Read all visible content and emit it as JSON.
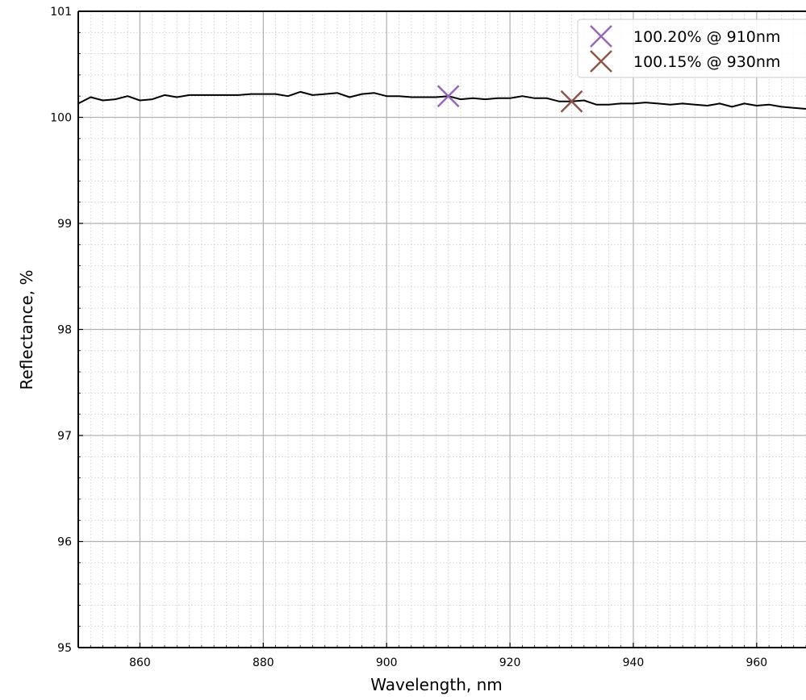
{
  "chart_data": {
    "type": "line",
    "title": "",
    "xlabel": "Wavelength, nm",
    "ylabel": "Reflectance, %",
    "xlim": [
      850,
      968
    ],
    "ylim": [
      95,
      101
    ],
    "xticks": [
      860,
      880,
      900,
      920,
      940,
      960
    ],
    "yticks": [
      95,
      96,
      97,
      98,
      99,
      100,
      101
    ],
    "x_minor_step": 2,
    "y_minor_step": 0.2,
    "grid": true,
    "minor_grid": true,
    "legend_position": "top-right",
    "colors": {
      "series": "#000000",
      "marker_910": "#9467bd",
      "marker_930": "#8c564b"
    },
    "series": [
      {
        "x": [
          850,
          852,
          854,
          856,
          858,
          860,
          862,
          864,
          866,
          868,
          870,
          872,
          874,
          876,
          878,
          880,
          882,
          884,
          886,
          888,
          890,
          892,
          894,
          896,
          898,
          900,
          902,
          904,
          906,
          908,
          910,
          912,
          914,
          916,
          918,
          920,
          922,
          924,
          926,
          928,
          930,
          932,
          934,
          936,
          938,
          940,
          942,
          944,
          946,
          948,
          950,
          952,
          954,
          956,
          958,
          960,
          962,
          964,
          966,
          968
        ],
        "y": [
          100.13,
          100.19,
          100.16,
          100.17,
          100.2,
          100.16,
          100.17,
          100.21,
          100.19,
          100.21,
          100.21,
          100.21,
          100.21,
          100.21,
          100.22,
          100.22,
          100.22,
          100.2,
          100.24,
          100.21,
          100.22,
          100.23,
          100.19,
          100.22,
          100.23,
          100.2,
          100.2,
          100.19,
          100.19,
          100.19,
          100.2,
          100.17,
          100.18,
          100.17,
          100.18,
          100.18,
          100.2,
          100.18,
          100.18,
          100.15,
          100.15,
          100.16,
          100.12,
          100.12,
          100.13,
          100.13,
          100.14,
          100.13,
          100.12,
          100.13,
          100.12,
          100.11,
          100.13,
          100.1,
          100.13,
          100.11,
          100.12,
          100.1,
          100.09,
          100.08
        ]
      }
    ],
    "markers": [
      {
        "x": 910,
        "y": 100.2,
        "symbol": "x",
        "label": "100.20% @ 910nm"
      },
      {
        "x": 930,
        "y": 100.15,
        "symbol": "x",
        "label": "100.15% @ 930nm"
      }
    ]
  }
}
